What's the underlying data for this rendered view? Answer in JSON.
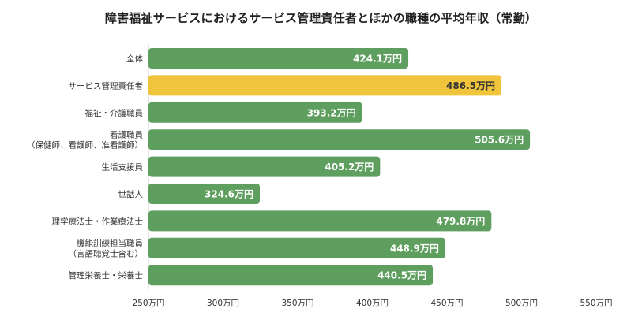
{
  "chart_data": {
    "type": "bar",
    "orientation": "horizontal",
    "title": "障害福祉サービスにおけるサービス管理責任者とほかの職種の平均年収（常勤）",
    "categories": [
      [
        "全体"
      ],
      [
        "サービス管理責任者"
      ],
      [
        "福祉・介護職員"
      ],
      [
        "看護職員",
        "（保健師、看護師、准看護師）"
      ],
      [
        "生活支援員"
      ],
      [
        "世話人"
      ],
      [
        "理学療法士・作業療法士"
      ],
      [
        "機能訓練担当職員",
        "（言語聴覚士含む）"
      ],
      [
        "管理栄養士・栄養士"
      ]
    ],
    "values": [
      424.1,
      486.5,
      393.2,
      505.6,
      405.2,
      324.6,
      479.8,
      448.9,
      440.5
    ],
    "value_labels": [
      "424.1万円",
      "486.5万円",
      "393.2万円",
      "505.6万円",
      "405.2万円",
      "324.6万円",
      "479.8万円",
      "448.9万円",
      "440.5万円"
    ],
    "highlight_index": 1,
    "xlim": [
      250,
      550
    ],
    "ticks": [
      250,
      300,
      350,
      400,
      450,
      500,
      550
    ],
    "tick_labels": [
      "250万円",
      "300万円",
      "350万円",
      "400万円",
      "450万円",
      "500万円",
      "550万円"
    ],
    "grid": false,
    "colors": {
      "bar": "#5e9e5e",
      "highlight": "#f0c53c",
      "highlight_text": "#333333",
      "text": "#333333",
      "axis": "#cccccc"
    }
  }
}
